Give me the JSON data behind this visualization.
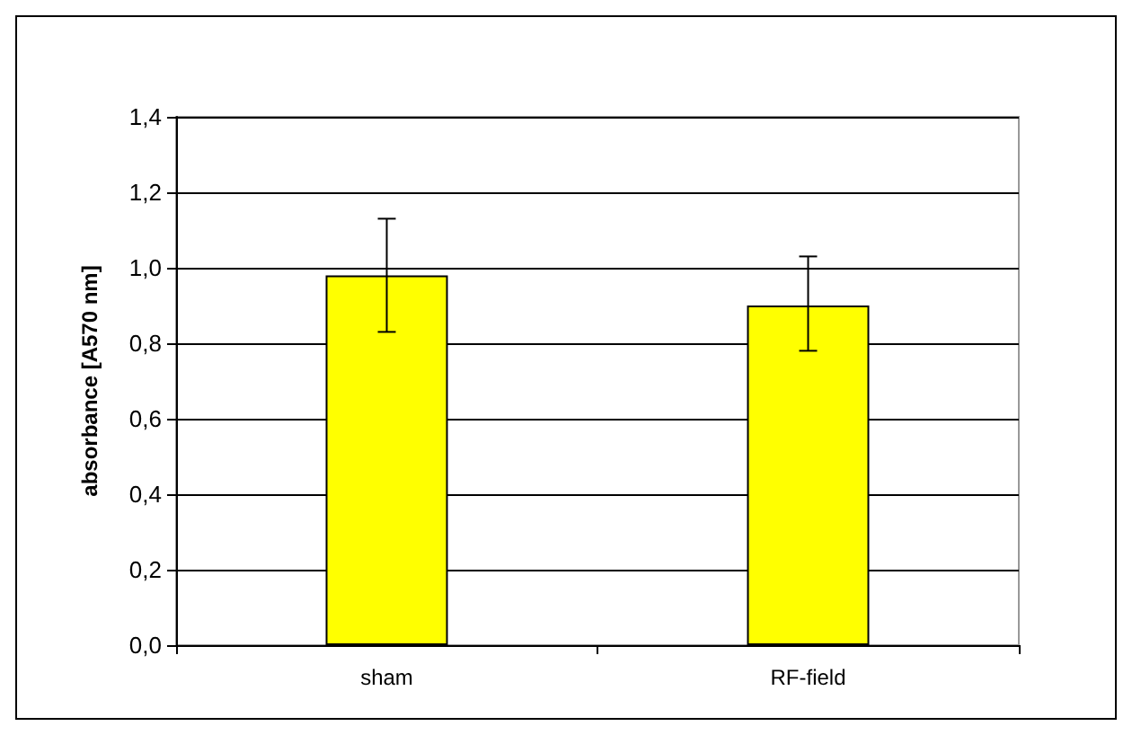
{
  "chart_data": {
    "type": "bar",
    "ylabel": "absorbance [A570 nm]",
    "categories": [
      "sham",
      "RF-field"
    ],
    "values": [
      0.98,
      0.9
    ],
    "color": "#ffff00",
    "errors": [
      [
        0.83,
        1.13
      ],
      [
        0.78,
        1.03
      ]
    ],
    "ylim": [
      0,
      1.4
    ],
    "yticks": [
      {
        "value": 0,
        "label": "0,0"
      },
      {
        "value": 0.2,
        "label": "0,2"
      },
      {
        "value": 0.4,
        "label": "0,4"
      },
      {
        "value": 0.6,
        "label": "0,6"
      },
      {
        "value": 0.8,
        "label": "0,8"
      },
      {
        "value": 1.0,
        "label": "1,0"
      },
      {
        "value": 1.2,
        "label": "1,2"
      },
      {
        "value": 1.4,
        "label": "1,4"
      }
    ],
    "grid": "y"
  }
}
